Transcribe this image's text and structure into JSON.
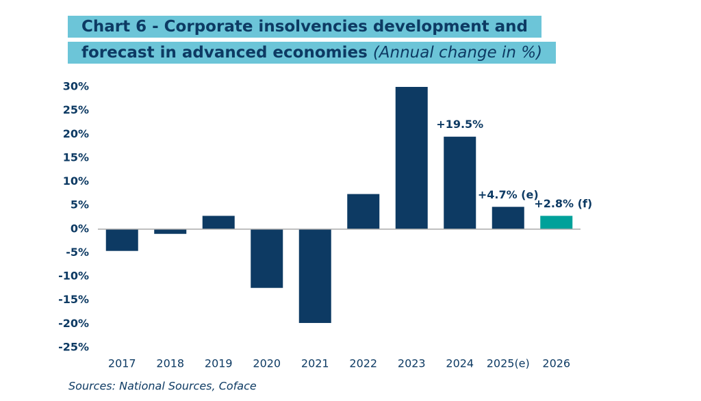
{
  "chart_data": {
    "type": "bar",
    "title": "Chart 6 - Corporate insolvencies development and forecast in advanced economies",
    "subtitle": "(Annual change in %)",
    "categories": [
      "2017",
      "2018",
      "2019",
      "2020",
      "2021",
      "2022",
      "2023",
      "2024",
      "2025(e)",
      "2026"
    ],
    "values": [
      -4.6,
      -1,
      2.8,
      -12.4,
      -19.8,
      7.4,
      30,
      19.5,
      4.7,
      2.8
    ],
    "value_labels": [
      null,
      null,
      null,
      null,
      null,
      null,
      null,
      "+19.5%",
      "+4.7% (e)",
      "+2.8% (f)"
    ],
    "colors": [
      "#0d3a63",
      "#0d3a63",
      "#0d3a63",
      "#0d3a63",
      "#0d3a63",
      "#0d3a63",
      "#0d3a63",
      "#0d3a63",
      "#0d3a63",
      "#00a19a"
    ],
    "ylim": [
      -25,
      30
    ],
    "yticks": [
      {
        "value": -25,
        "label": "-25%"
      },
      {
        "value": -20,
        "label": "-20%"
      },
      {
        "value": -15,
        "label": "-15%"
      },
      {
        "value": -10,
        "label": "-10%"
      },
      {
        "value": -5,
        "label": "-5%"
      },
      {
        "value": 0,
        "label": "0%"
      },
      {
        "value": 5,
        "label": "5%"
      },
      {
        "value": 10,
        "label": "10%"
      },
      {
        "value": 15,
        "label": "15%"
      },
      {
        "value": 20,
        "label": "20%"
      },
      {
        "value": 25,
        "label": "25%"
      },
      {
        "value": 30,
        "label": "30%"
      }
    ],
    "source": "Sources: National Sources, Coface"
  }
}
